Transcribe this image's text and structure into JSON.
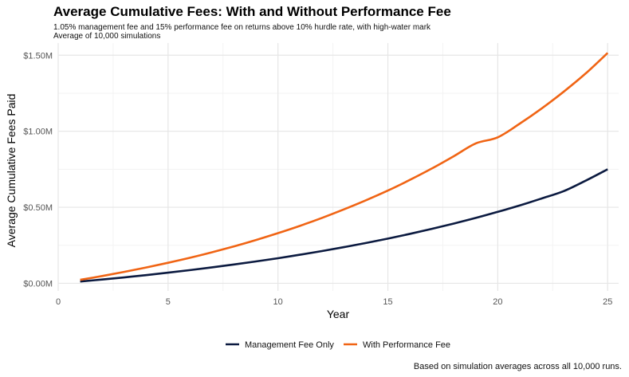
{
  "chart_data": {
    "type": "line",
    "title": "Average Cumulative Fees: With and Without Performance Fee",
    "subtitle": [
      "1.05% management fee and 15% performance fee on returns above 10% hurdle rate, with high-water mark",
      "Average of 10,000 simulations"
    ],
    "caption": "Based on simulation averages across all 10,000 runs.",
    "xlabel": "Year",
    "ylabel": "Average Cumulative Fees Paid",
    "xlim": [
      0,
      25.5
    ],
    "ylim": [
      -0.05,
      1.58
    ],
    "x_ticks": [
      0,
      5,
      10,
      15,
      20,
      25
    ],
    "y_ticks": [
      0,
      0.5,
      1.0,
      1.5
    ],
    "y_tick_labels": [
      "$0.00M",
      "$0.50M",
      "$1.00M",
      "$1.50M"
    ],
    "grid": true,
    "legend_position": "bottom",
    "x": [
      1,
      2,
      3,
      4,
      5,
      6,
      7,
      8,
      9,
      10,
      11,
      12,
      13,
      14,
      15,
      16,
      17,
      18,
      19,
      20,
      21,
      22,
      23,
      24,
      25
    ],
    "series": [
      {
        "name": "Management Fee Only",
        "color": "#0b1a40",
        "values": [
          0.012,
          0.025,
          0.039,
          0.054,
          0.07,
          0.087,
          0.105,
          0.124,
          0.144,
          0.165,
          0.188,
          0.212,
          0.238,
          0.265,
          0.294,
          0.325,
          0.358,
          0.393,
          0.43,
          0.47,
          0.512,
          0.558,
          0.606,
          0.675,
          0.75
        ]
      },
      {
        "name": "With Performance Fee",
        "color": "#f06414",
        "values": [
          0.023,
          0.048,
          0.075,
          0.104,
          0.135,
          0.168,
          0.204,
          0.243,
          0.285,
          0.33,
          0.378,
          0.43,
          0.486,
          0.546,
          0.61,
          0.68,
          0.755,
          0.836,
          0.92,
          0.96,
          1.05,
          1.15,
          1.26,
          1.38,
          1.515
        ]
      }
    ]
  }
}
